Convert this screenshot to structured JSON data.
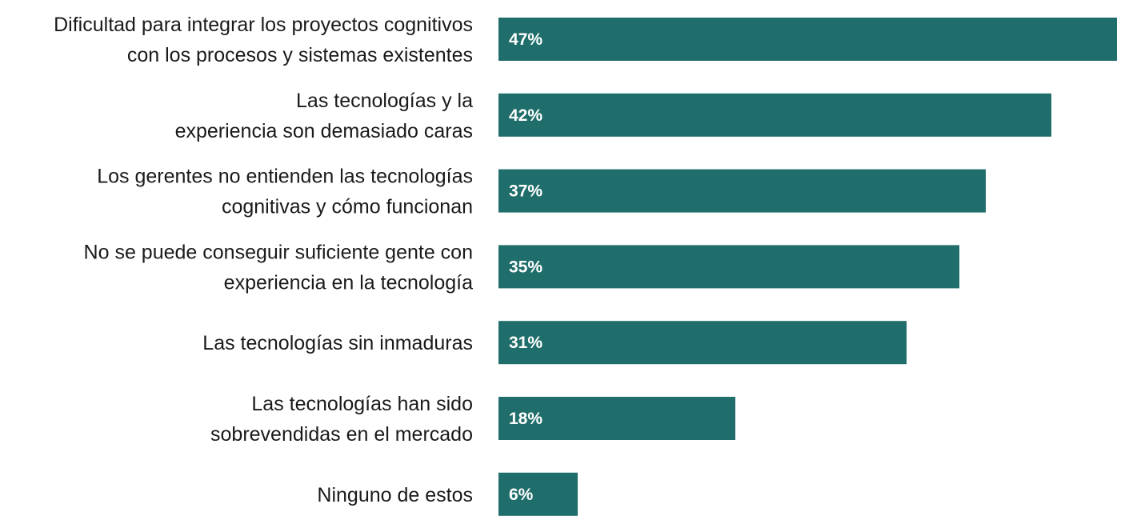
{
  "chart_data": {
    "type": "bar",
    "orientation": "horizontal",
    "categories": [
      [
        "Dificultad para integrar los proyectos cognitivos",
        "con los procesos y sistemas existentes"
      ],
      [
        "Las tecnologías y la",
        "experiencia son demasiado caras"
      ],
      [
        "Los gerentes no entienden las tecnologías",
        "cognitivas y cómo funcionan"
      ],
      [
        "No se puede conseguir suficiente gente con",
        "experiencia en la tecnología"
      ],
      [
        "Las tecnologías sin inmaduras"
      ],
      [
        "Las tecnologías han sido",
        "sobrevendidas en el mercado"
      ],
      [
        "Ninguno de estos"
      ]
    ],
    "values": [
      47,
      42,
      37,
      35,
      31,
      18,
      6
    ],
    "value_labels": [
      "47%",
      "42%",
      "37%",
      "35%",
      "31%",
      "18%",
      "6%"
    ],
    "unit": "%",
    "xlim": [
      0,
      47
    ],
    "title": "",
    "xlabel": "",
    "ylabel": "",
    "grid": false,
    "legend": "none",
    "bar_color": "#206e6b",
    "value_label_color": "#ffffff"
  }
}
